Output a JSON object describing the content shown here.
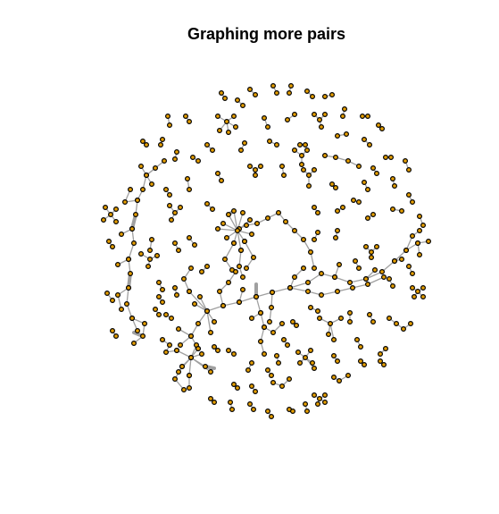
{
  "title": "Graphing more pairs",
  "colors": {
    "node_fill": "#e69f00",
    "node_stroke": "#000000",
    "edge": "#a0a0a0",
    "background": "#ffffff"
  },
  "graph": {
    "type": "network",
    "layout": "force-directed",
    "node_shape": "circle",
    "node_labels": "none",
    "description": "A large connected tree-like component in the center-left, several chains, and many small disconnected pairs, triples and small clusters spread in a roughly circular cloud"
  }
}
